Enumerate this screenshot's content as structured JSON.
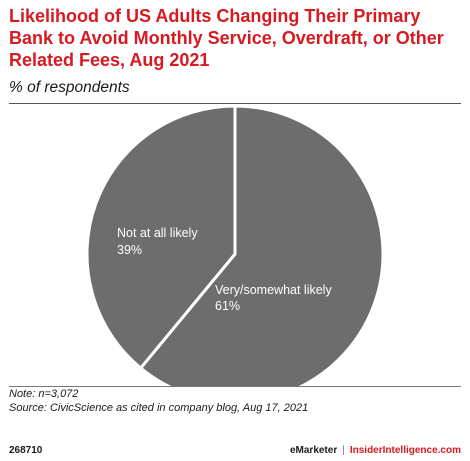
{
  "header": {
    "title": "Likelihood of US Adults Changing Their Primary Bank to Avoid Monthly Service, Overdraft, or Other Related Fees, Aug 2021",
    "subtitle": "% of respondents"
  },
  "chart_data": {
    "type": "pie",
    "title": "Likelihood of US Adults Changing Their Primary Bank to Avoid Monthly Service, Overdraft, or Other Related Fees, Aug 2021",
    "subtitle": "% of respondents",
    "unit": "%",
    "slices": [
      {
        "label": "Very/somewhat likely",
        "value": 61,
        "value_text": "61%"
      },
      {
        "label": "Not at all likely",
        "value": 39,
        "value_text": "39%"
      }
    ],
    "start_angle": "12 o'clock",
    "direction": "clockwise",
    "legend": "none (labels inside slices)",
    "colors": {
      "slice_fill": "#6d6d6d",
      "separator": "#ffffff"
    }
  },
  "notes": {
    "note": "Note: n=3,072",
    "source": "Source: CivicScience as cited in company blog, Aug 17, 2021"
  },
  "footer": {
    "chart_id": "268710",
    "brand": "eMarketer",
    "separator": "|",
    "site": "InsiderIntelligence.com"
  },
  "colors": {
    "title": "#d71920",
    "slice": "#6d6d6d",
    "text": "#1a1a1a",
    "site_link": "#d71920"
  }
}
